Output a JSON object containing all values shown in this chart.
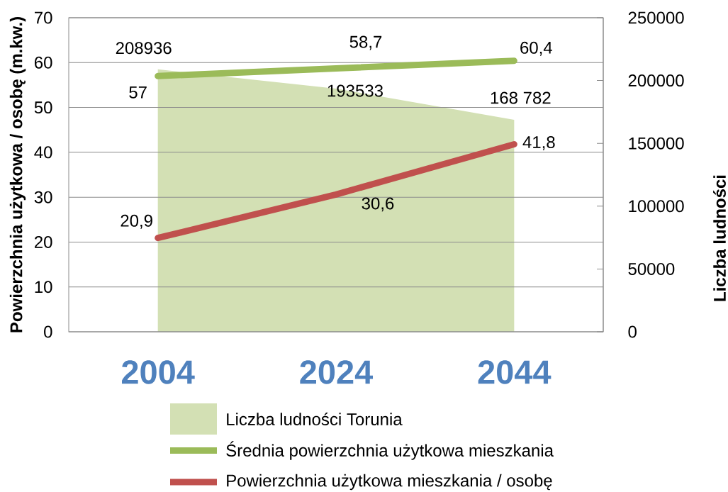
{
  "chart_data": {
    "type": "line",
    "categories": [
      "2004",
      "2024",
      "2044"
    ],
    "ylabel": "Powierzchnia użytkowa / osobę (m.kw.)",
    "y2label": "Liczba ludności",
    "ylim": [
      0,
      70
    ],
    "yticks": [
      0,
      10,
      20,
      30,
      40,
      50,
      60,
      70
    ],
    "y2lim": [
      0,
      250000
    ],
    "y2ticks": [
      0,
      50000,
      100000,
      150000,
      200000,
      250000
    ],
    "grid": "y",
    "legend": "bottom",
    "series": [
      {
        "name": "Liczba ludności Torunia",
        "type": "area",
        "axis": "y2",
        "color": "#d3e0b4",
        "values": [
          208936,
          193533,
          168782
        ],
        "value_labels": [
          "208936",
          "193533",
          "168 782"
        ]
      },
      {
        "name": "Średnia powierzchnia użytkowa mieszkania",
        "color": "#9bbb59",
        "values": [
          57,
          58.7,
          60.4
        ],
        "value_labels": [
          "57",
          "58,7",
          "60,4"
        ]
      },
      {
        "name": "Powierzchnia użytkowa mieszkania / osobę",
        "color": "#c0504d",
        "values": [
          20.9,
          30.6,
          41.8
        ],
        "value_labels": [
          "20,9",
          "30,6",
          "41,8"
        ]
      }
    ]
  }
}
